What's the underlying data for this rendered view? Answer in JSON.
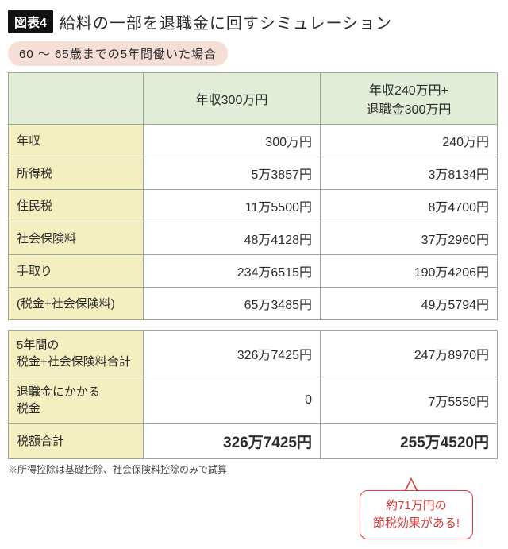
{
  "figure": {
    "badge": "図表4",
    "title": "給料の一部を退職金に回すシミュレーション",
    "scenario": "60 〜 65歳までの5年間働いた場合"
  },
  "table1": {
    "headers": [
      "",
      "年収300万円",
      "年収240万円+\n退職金300万円"
    ],
    "rows": [
      {
        "label": "年収",
        "c1": "300万円",
        "c2": "240万円"
      },
      {
        "label": "所得税",
        "c1": "5万3857円",
        "c2": "3万8134円"
      },
      {
        "label": "住民税",
        "c1": "11万5500円",
        "c2": "8万4700円"
      },
      {
        "label": "社会保険料",
        "c1": "48万4128円",
        "c2": "37万2960円"
      },
      {
        "label": "手取り",
        "c1": "234万6515円",
        "c2": "190万4206円"
      },
      {
        "label": "(税金+社会保険料)",
        "c1": "65万3485円",
        "c2": "49万5794円"
      }
    ]
  },
  "table2": {
    "rows": [
      {
        "label": "5年間の\n税金+社会保険料合計",
        "c1": "326万7425円",
        "c2": "247万8970円",
        "bold": false
      },
      {
        "label": "退職金にかかる\n税金",
        "c1": "0",
        "c2": "7万5550円",
        "bold": false
      },
      {
        "label": "税額合計",
        "c1": "326万7425円",
        "c2": "255万4520円",
        "bold": true
      }
    ]
  },
  "footnote": "※所得控除は基礎控除、社会保険料控除のみで試算",
  "callout": {
    "line1": "約71万円の",
    "line2": "節税効果がある!"
  },
  "style": {
    "badge_bg": "#111111",
    "badge_fg": "#ffffff",
    "scenario_bg": "#f4ded6",
    "header_bg": "#e1edd6",
    "label_bg": "#f4efc1",
    "border_color": "#9aa89a",
    "callout_color": "#d83a3a",
    "background": "#ffffff",
    "body_font_size": 15,
    "title_font_size": 20,
    "bold_val_font_size": 19
  }
}
